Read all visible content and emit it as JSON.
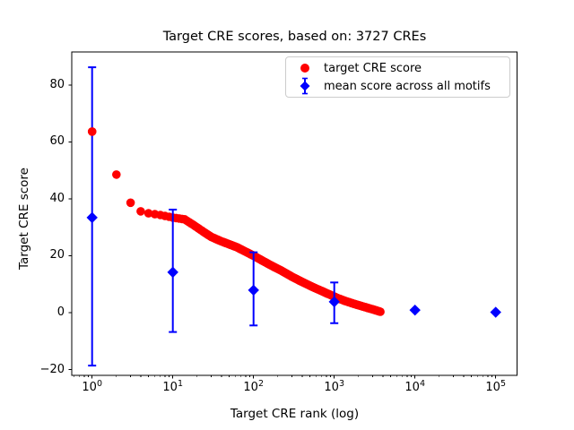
{
  "figure": {
    "background": "#ffffff",
    "title": "Target CRE scores, based on: 3727 CREs"
  },
  "chart_data": {
    "type": "scatter",
    "title": "Target CRE scores, based on: 3727 CREs",
    "xlabel": "Target CRE rank (log)",
    "ylabel": "Target CRE score",
    "x_scale": "log",
    "grid": false,
    "xlim_log10": [
      -0.2522,
      5.2644
    ],
    "ylim": [
      -22.03,
      91.58
    ],
    "x_tick_exponents": [
      0,
      1,
      2,
      3,
      4,
      5
    ],
    "x_tick_base": "10",
    "y_ticks": [
      -20,
      0,
      20,
      40,
      60,
      80
    ],
    "colors": {
      "target": "#ff0000",
      "mean": "#0000ff",
      "axis": "#000000",
      "legend_border": "#cccccc"
    },
    "legend": {
      "position": "upper right",
      "entries": [
        {
          "label": "target CRE score",
          "marker": "circle",
          "color": "#ff0000"
        },
        {
          "label": "mean score across all motifs",
          "marker": "diamond-errorbar",
          "color": "#0000ff"
        }
      ]
    },
    "series": [
      {
        "name": "target CRE score",
        "type": "scatter",
        "marker": "circle",
        "color": "#ff0000",
        "n_points": 3727,
        "rank_range": [
          1,
          3727
        ],
        "anchors_rank_score": [
          [
            1,
            63.6
          ],
          [
            2,
            48.5
          ],
          [
            3,
            38.6
          ],
          [
            4,
            35.6
          ],
          [
            5,
            34.9
          ],
          [
            7,
            34.3
          ],
          [
            10,
            33.4
          ],
          [
            14,
            32.8
          ],
          [
            18,
            30.8
          ],
          [
            24,
            28.4
          ],
          [
            30,
            26.6
          ],
          [
            38,
            25.3
          ],
          [
            48,
            24.2
          ],
          [
            62,
            23.0
          ],
          [
            80,
            21.4
          ],
          [
            100,
            20.0
          ],
          [
            130,
            18.2
          ],
          [
            170,
            16.4
          ],
          [
            220,
            14.8
          ],
          [
            300,
            12.6
          ],
          [
            400,
            10.8
          ],
          [
            550,
            8.9
          ],
          [
            700,
            7.6
          ],
          [
            900,
            6.2
          ],
          [
            1100,
            5.1
          ],
          [
            1400,
            4.0
          ],
          [
            1800,
            3.0
          ],
          [
            2300,
            2.1
          ],
          [
            2800,
            1.4
          ],
          [
            3300,
            0.8
          ],
          [
            3727,
            0.3
          ]
        ]
      },
      {
        "name": "mean score across all motifs",
        "type": "errorbar",
        "marker": "diamond",
        "color": "#0000ff",
        "points": [
          {
            "x": 1,
            "y": 33.4,
            "err_lo": -18.6,
            "err_hi": 86.2
          },
          {
            "x": 10,
            "y": 14.2,
            "err_lo": -6.8,
            "err_hi": 36.2
          },
          {
            "x": 100,
            "y": 7.9,
            "err_lo": -4.5,
            "err_hi": 21.2
          },
          {
            "x": 1000,
            "y": 3.8,
            "err_lo": -3.7,
            "err_hi": 10.6
          },
          {
            "x": 10000,
            "y": 0.9,
            "err_lo": null,
            "err_hi": null
          },
          {
            "x": 100000,
            "y": 0.15,
            "err_lo": null,
            "err_hi": null
          }
        ]
      }
    ]
  }
}
